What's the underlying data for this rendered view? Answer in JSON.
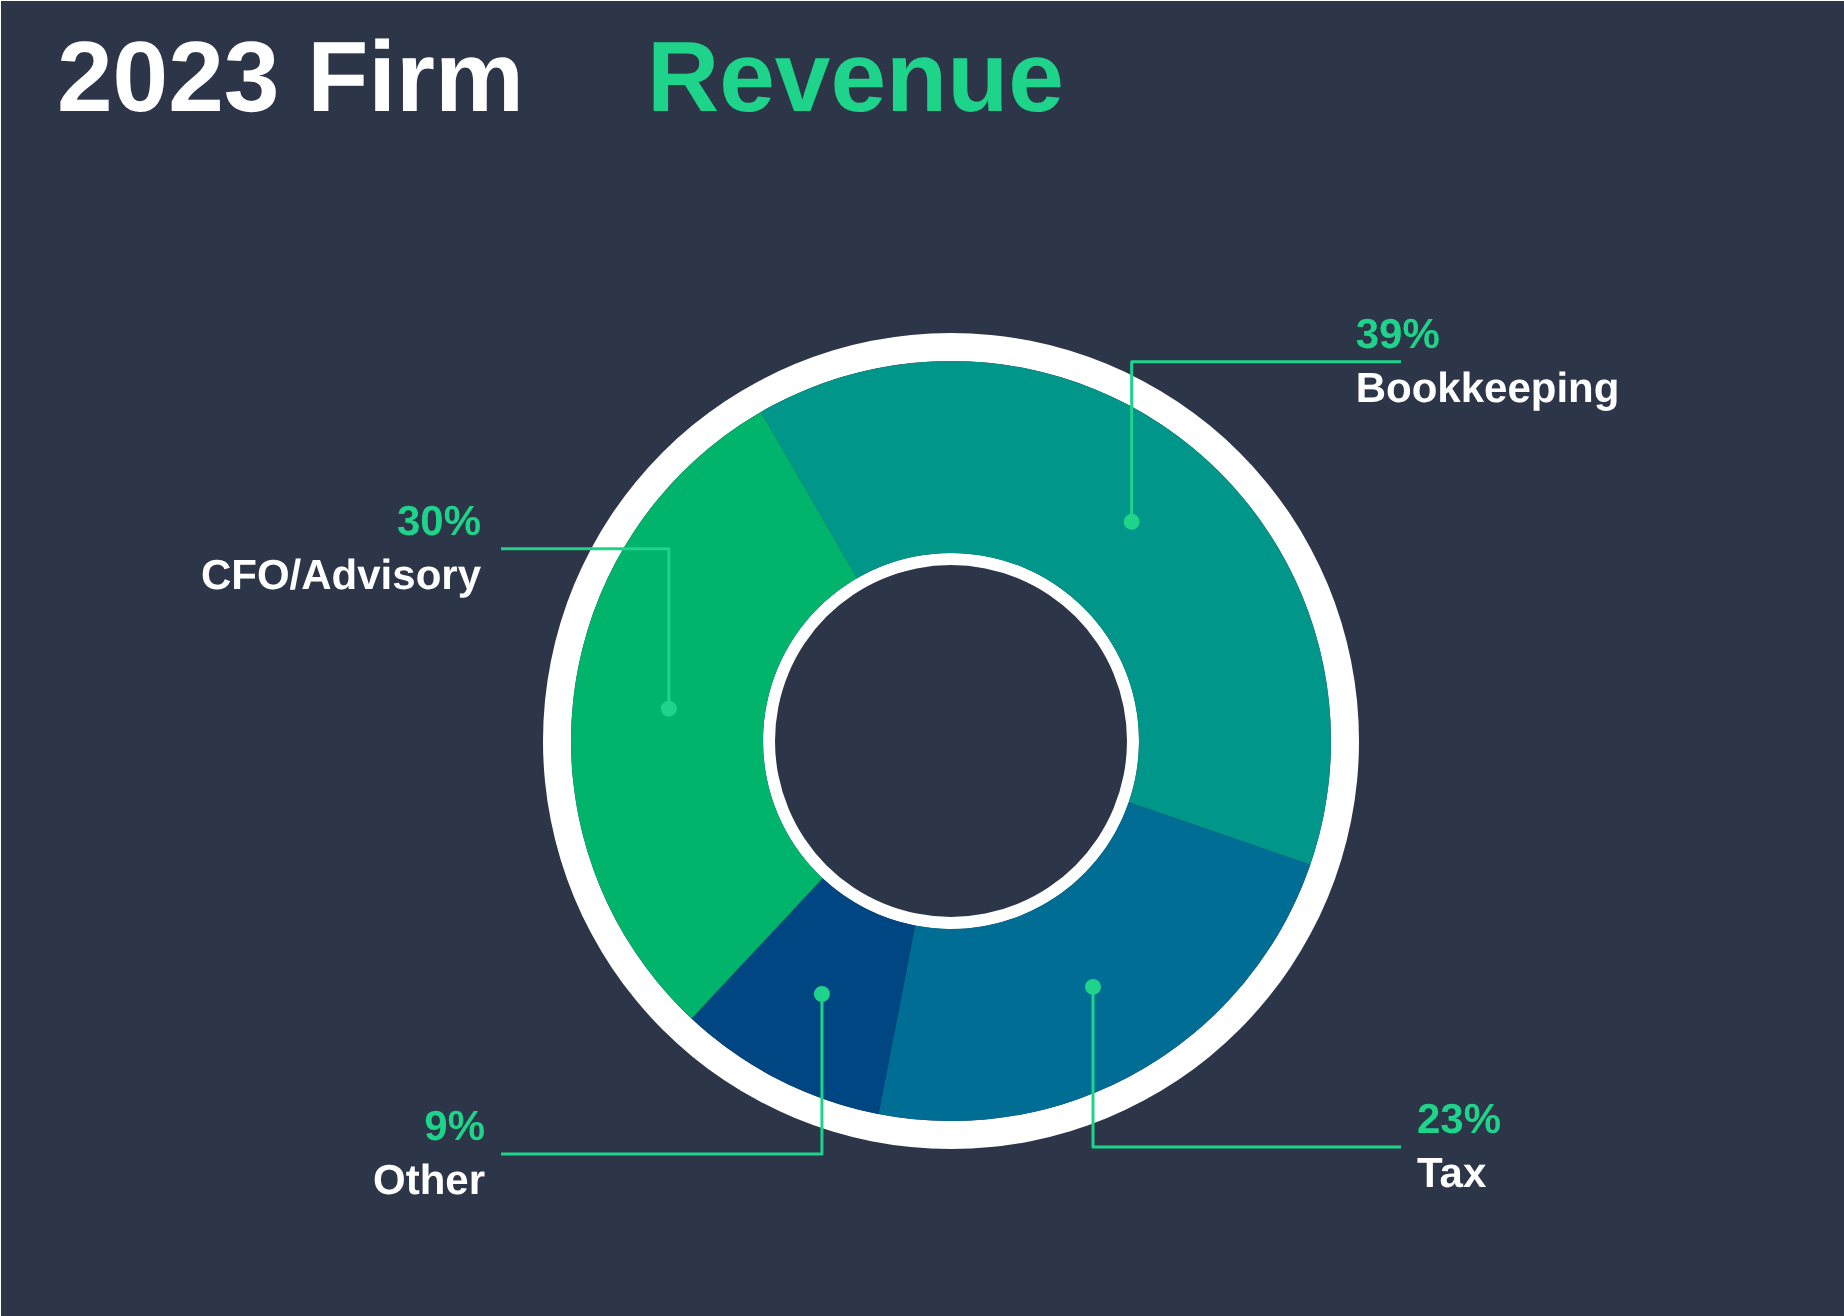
{
  "chart_data": {
    "type": "donut",
    "title": "2023 Firm Revenue",
    "categories": [
      "Bookkeeping",
      "Tax",
      "Other",
      "CFO/Advisory"
    ],
    "values": [
      39,
      23,
      9,
      30
    ],
    "colors": [
      "#00968a",
      "#006d94",
      "#004682",
      "#00b56b"
    ],
    "value_labels": [
      "39%",
      "23%",
      "9%",
      "30%"
    ]
  }
}
